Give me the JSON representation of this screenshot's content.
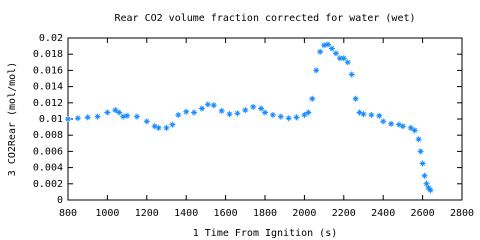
{
  "chart_data": {
    "type": "scatter",
    "title": "Rear CO2 volume fraction corrected for water (wet)",
    "xlabel": "1 Time From Ignition (s)",
    "ylabel": "3 CO2Rear (mol/mol)",
    "x": [
      800,
      850,
      900,
      950,
      1000,
      1040,
      1060,
      1080,
      1100,
      1150,
      1200,
      1240,
      1260,
      1300,
      1330,
      1360,
      1400,
      1440,
      1480,
      1510,
      1540,
      1580,
      1620,
      1660,
      1700,
      1740,
      1780,
      1800,
      1840,
      1880,
      1920,
      1960,
      2000,
      2020,
      2040,
      2060,
      2080,
      2100,
      2120,
      2140,
      2160,
      2180,
      2200,
      2220,
      2240,
      2260,
      2280,
      2300,
      2340,
      2380,
      2400,
      2440,
      2480,
      2500,
      2540,
      2560,
      2580,
      2590,
      2600,
      2610,
      2620,
      2630,
      2640
    ],
    "series": [
      {
        "name": "3 CO2Rear",
        "color": "#1a8cff",
        "values": [
          0.01,
          0.0101,
          0.0102,
          0.0103,
          0.0108,
          0.0111,
          0.0108,
          0.0103,
          0.0104,
          0.0103,
          0.0097,
          0.0091,
          0.0089,
          0.0089,
          0.0093,
          0.0105,
          0.0109,
          0.0108,
          0.0113,
          0.0118,
          0.0117,
          0.011,
          0.0106,
          0.0107,
          0.0111,
          0.0115,
          0.0113,
          0.0108,
          0.0105,
          0.0103,
          0.0101,
          0.0102,
          0.0105,
          0.0108,
          0.0125,
          0.016,
          0.0183,
          0.0191,
          0.0192,
          0.0187,
          0.0181,
          0.0175,
          0.0175,
          0.017,
          0.0155,
          0.0125,
          0.0108,
          0.0106,
          0.0105,
          0.0104,
          0.0097,
          0.0094,
          0.0093,
          0.0091,
          0.0089,
          0.0086,
          0.0075,
          0.006,
          0.0045,
          0.003,
          0.002,
          0.0015,
          0.0012
        ]
      }
    ],
    "xlim": [
      800,
      2800
    ],
    "ylim": [
      0,
      0.02
    ],
    "xticks": [
      800,
      1000,
      1200,
      1400,
      1600,
      1800,
      2000,
      2200,
      2400,
      2600,
      2800
    ],
    "yticks": [
      0,
      0.002,
      0.004,
      0.006,
      0.008,
      0.01,
      0.012,
      0.014,
      0.016,
      0.018,
      0.02
    ],
    "grid": false
  }
}
